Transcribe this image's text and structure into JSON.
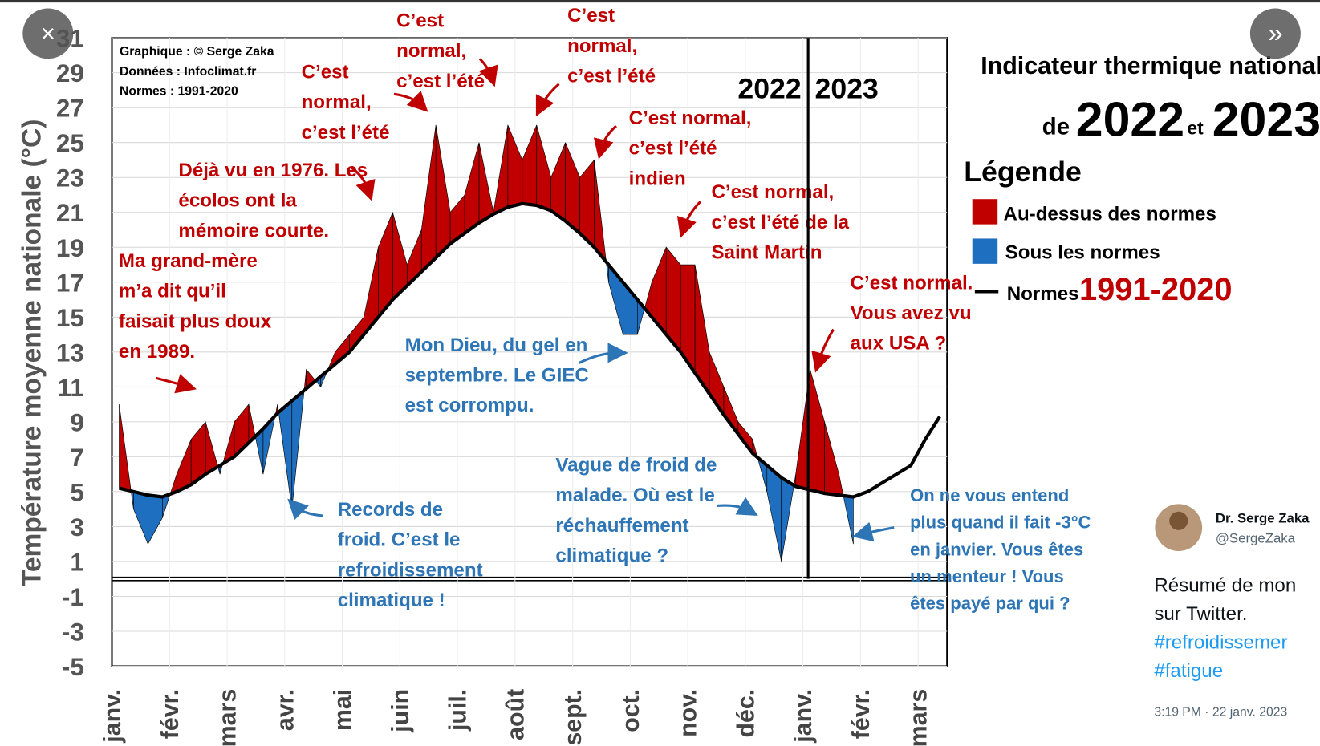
{
  "viewer": {
    "close": "×",
    "next": "»"
  },
  "chart_data": {
    "type": "area",
    "title": "Indicateur thermique national",
    "subtitle": [
      "de",
      "2022",
      "et",
      "2023"
    ],
    "credits": [
      "Graphique : © Serge Zaka",
      "Données : Infoclimat.fr",
      "Normes : 1991-2020"
    ],
    "ylabel": "Température moyenne nationale (°C)",
    "ylim": [
      -5,
      31
    ],
    "yticks": [
      -5,
      -3,
      -1,
      1,
      3,
      5,
      7,
      9,
      11,
      13,
      15,
      17,
      19,
      21,
      23,
      25,
      27,
      29,
      31
    ],
    "grid": true,
    "months": [
      "janv.",
      "févr.",
      "mars",
      "avr.",
      "mai",
      "juin",
      "juil.",
      "août",
      "sept.",
      "oct.",
      "nov.",
      "déc.",
      "janv.",
      "févr.",
      "mars"
    ],
    "years": [
      "2022",
      "2023"
    ],
    "normal": {
      "name": "Normes",
      "period": "1991-2020",
      "color": "#000000",
      "values": [
        5.2,
        5.0,
        4.8,
        4.7,
        5.0,
        5.4,
        6.0,
        6.5,
        7.0,
        7.8,
        8.6,
        9.5,
        10.2,
        10.9,
        11.6,
        12.3,
        13.0,
        14.0,
        15.0,
        16.0,
        16.8,
        17.6,
        18.4,
        19.2,
        19.8,
        20.4,
        20.9,
        21.3,
        21.5,
        21.4,
        21.1,
        20.5,
        19.8,
        19.0,
        18.0,
        17.0,
        16.0,
        15.0,
        14.0,
        13.0,
        11.8,
        10.6,
        9.4,
        8.3,
        7.2,
        6.5,
        5.8,
        5.3,
        5.1,
        4.9,
        4.8,
        4.7,
        5.0,
        5.5,
        6.0,
        6.5,
        8.0,
        9.3
      ]
    },
    "observed": {
      "values": [
        10,
        4,
        2,
        3.5,
        6,
        8,
        9,
        6,
        9,
        10,
        6,
        10,
        4,
        12,
        11,
        13,
        14,
        15,
        19,
        21,
        18,
        20,
        26,
        21,
        22,
        25,
        21,
        26,
        24,
        26,
        23,
        25,
        23,
        24,
        17,
        14,
        14,
        17,
        19,
        18,
        18,
        13,
        11,
        9,
        8,
        5,
        1,
        6,
        12,
        9,
        6,
        2,
        null,
        null,
        null,
        null,
        null,
        null
      ]
    },
    "legend": {
      "title": "Légende",
      "above": {
        "name": "Au-dessus des normes",
        "color": "#c00000"
      },
      "below": {
        "name": "Sous les normes",
        "color": "#1f6fc0"
      }
    },
    "annotations": [
      {
        "color": "#c00000",
        "lines": [
          "Ma grand-mère",
          "m’a dit qu’il",
          "faisait plus doux",
          "en 1989."
        ]
      },
      {
        "color": "#c00000",
        "lines": [
          "Déjà vu en 1976. Les",
          "écolos ont la",
          "mémoire courte."
        ]
      },
      {
        "color": "#c00000",
        "lines": [
          "C’est",
          "normal,",
          "c’est l’été"
        ]
      },
      {
        "color": "#c00000",
        "lines": [
          "C’est",
          "normal,",
          "c’est l’été"
        ]
      },
      {
        "color": "#c00000",
        "lines": [
          "C’est",
          "normal,",
          "c’est l’été"
        ]
      },
      {
        "color": "#c00000",
        "lines": [
          "C’est normal,",
          "c’est l’été",
          "indien"
        ]
      },
      {
        "color": "#c00000",
        "lines": [
          "C’est normal,",
          "c’est l’été de la",
          "Saint Martin"
        ]
      },
      {
        "color": "#c00000",
        "lines": [
          "C’est normal.",
          "Vous avez vu",
          "aux USA ?"
        ]
      },
      {
        "color": "#2e75b6",
        "lines": [
          "Mon Dieu, du gel en",
          "septembre. Le GIEC",
          "est corrompu."
        ]
      },
      {
        "color": "#2e75b6",
        "lines": [
          "Records de",
          "froid. C’est le",
          "refroidissement",
          "climatique !"
        ]
      },
      {
        "color": "#2e75b6",
        "lines": [
          "Vague de froid de",
          "malade. Où est le",
          "réchauffement",
          "climatique ?"
        ]
      },
      {
        "color": "#2e75b6",
        "lines": [
          "On ne vous entend",
          "plus quand il fait -3°C",
          "en janvier. Vous êtes",
          "un menteur ! Vous",
          "êtes payé par qui ?"
        ]
      }
    ]
  },
  "tweet": {
    "author": "Dr. Serge Zaka",
    "handle": "@SergeZaka",
    "text": [
      "Résumé de mon",
      "sur Twitter."
    ],
    "hashtags": [
      "#refroidissemer",
      "#fatigue"
    ],
    "time": "3:19 PM · 22 janv. 2023"
  }
}
